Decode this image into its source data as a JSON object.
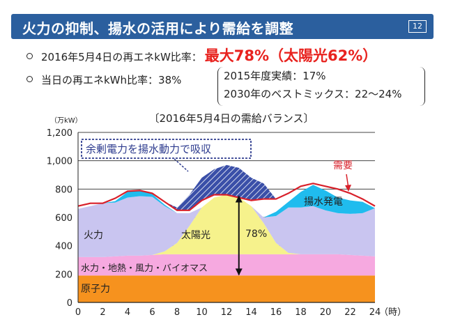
{
  "header": {
    "title": "火力の抑制、揚水の活用により需給を調整",
    "page_number": "12"
  },
  "bullets": {
    "ratio_kw": {
      "label": "2016年5月4日の再エネkW比率：",
      "value": "最大78%（太陽光62%）"
    },
    "ratio_kwh": {
      "label": "当日の再エネkWh比率：38%"
    }
  },
  "comparison": {
    "line1": "2015年度実績：17%",
    "line2": "2030年のベストミックス：22～24%"
  },
  "chart_data": {
    "type": "area",
    "title": "〔2016年5月4日の需給バランス〕",
    "y_unit_label": "（万kW）",
    "x_unit_label": "（時）",
    "xlim": [
      0,
      24
    ],
    "ylim": [
      0,
      1200
    ],
    "x_ticks": [
      0,
      2,
      4,
      6,
      8,
      10,
      12,
      14,
      16,
      18,
      20,
      22,
      24
    ],
    "y_ticks": [
      0,
      200,
      400,
      600,
      800,
      1000,
      1200
    ],
    "y_tick_labels": [
      "0",
      "200",
      "400",
      "600",
      "800",
      "1,000",
      "1,200"
    ],
    "x": [
      0,
      1,
      2,
      3,
      4,
      5,
      6,
      7,
      8,
      9,
      10,
      11,
      12,
      13,
      14,
      15,
      16,
      17,
      18,
      19,
      20,
      21,
      22,
      23,
      24
    ],
    "series": [
      {
        "name": "原子力",
        "color": "#f6921e",
        "values": [
          190,
          190,
          190,
          190,
          190,
          190,
          190,
          190,
          190,
          190,
          190,
          190,
          190,
          190,
          190,
          190,
          190,
          190,
          190,
          190,
          190,
          190,
          190,
          190,
          190
        ]
      },
      {
        "name": "水力・地熱・風力・バイオマス",
        "color": "#f6a9e0",
        "values": [
          130,
          130,
          130,
          135,
          140,
          140,
          145,
          150,
          150,
          150,
          150,
          150,
          150,
          150,
          150,
          150,
          150,
          150,
          150,
          150,
          150,
          150,
          145,
          140,
          135
        ]
      },
      {
        "name": "太陽光",
        "color": "#f6f28c",
        "values": [
          0,
          0,
          0,
          0,
          0,
          0,
          0,
          20,
          80,
          200,
          330,
          400,
          420,
          400,
          340,
          220,
          80,
          10,
          0,
          0,
          0,
          0,
          0,
          0,
          0
        ]
      },
      {
        "name": "火力",
        "color": "#c9c5f0",
        "values": [
          340,
          360,
          380,
          380,
          410,
          420,
          410,
          320,
          210,
          90,
          0,
          0,
          0,
          0,
          0,
          40,
          190,
          320,
          330,
          340,
          310,
          290,
          290,
          300,
          340
        ]
      },
      {
        "name": "揚水発電",
        "color": "#20bcee",
        "values": [
          0,
          0,
          0,
          10,
          40,
          40,
          20,
          10,
          0,
          0,
          0,
          0,
          0,
          0,
          0,
          0,
          30,
          40,
          110,
          150,
          140,
          110,
          95,
          80,
          0
        ]
      }
    ],
    "demand": {
      "name": "需要",
      "color": "#d8202a",
      "values": [
        680,
        700,
        700,
        735,
        785,
        790,
        770,
        710,
        650,
        650,
        720,
        760,
        760,
        740,
        720,
        730,
        730,
        770,
        820,
        840,
        820,
        800,
        770,
        730,
        680
      ]
    },
    "surplus": {
      "name": "余剰電力を揚水動力で吸収",
      "color": "#2e3c8f",
      "top": [
        680,
        700,
        700,
        735,
        785,
        790,
        770,
        710,
        670,
        760,
        880,
        940,
        970,
        950,
        880,
        840,
        730,
        770,
        820,
        840,
        820,
        800,
        770,
        730,
        680
      ]
    },
    "annotations": {
      "thermal": "火力",
      "solar": "太陽光",
      "renewable_pct": "78%",
      "hydro_etc": "水力・地熱・風力・バイオマス",
      "nuclear": "原子力",
      "pumped": "揚水発電",
      "demand": "需要",
      "surplus": "余剰電力を揚水動力で吸収"
    }
  }
}
